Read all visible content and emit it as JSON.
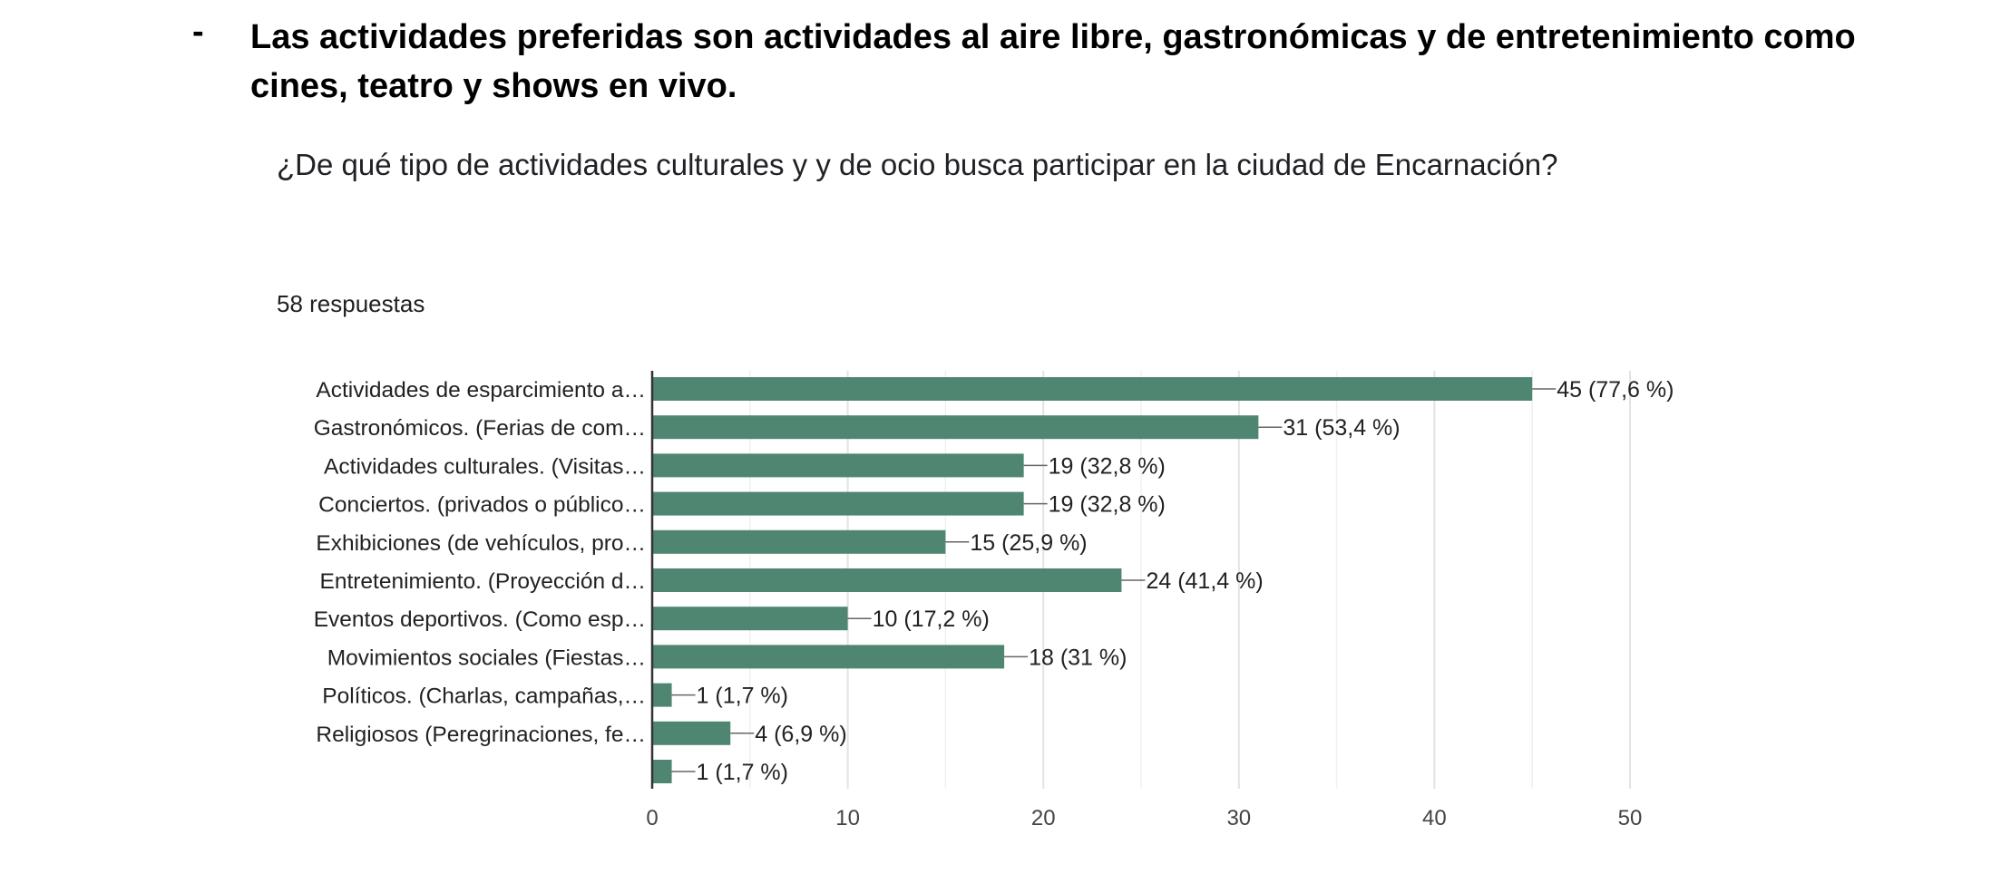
{
  "header": {
    "bullet": "-",
    "text": "Las actividades preferidas son actividades al aire libre, gastronómicas y de entretenimiento como cines, teatro y shows en vivo."
  },
  "question": "¿De qué tipo de actividades culturales y y de ocio busca participar en la ciudad de Encarnación?",
  "response_count": "58 respuestas",
  "colors": {
    "bar": "#4f8672",
    "grid": "#e3e3e3",
    "axis": "#333333",
    "connector": "#666666"
  },
  "chart_data": {
    "type": "bar",
    "orientation": "horizontal",
    "title": "¿De qué tipo de actividades culturales y y de ocio busca participar en la ciudad de Encarnación?",
    "categories": [
      "Actividades de esparcimiento a…",
      "Gastronómicos. (Ferias de com…",
      "Actividades culturales. (Visitas…",
      "Conciertos. (privados o público…",
      "Exhibiciones (de vehículos, pro…",
      "Entretenimiento. (Proyección d…",
      "Eventos deportivos. (Como esp…",
      "Movimientos sociales (Fiestas…",
      "Políticos. (Charlas, campañas,…",
      "Religiosos (Peregrinaciones, fe…",
      ""
    ],
    "values": [
      45,
      31,
      19,
      19,
      15,
      24,
      10,
      18,
      1,
      4,
      1
    ],
    "data_labels": [
      "45 (77,6 %)",
      "31 (53,4 %)",
      "19 (32,8 %)",
      "19 (32,8 %)",
      "15 (25,9 %)",
      "24 (41,4 %)",
      "10 (17,2 %)",
      "18 (31 %)",
      "1 (1,7 %)",
      "4 (6,9 %)",
      "1 (1,7 %)"
    ],
    "xlim": [
      0,
      50
    ],
    "xticks": [
      0,
      10,
      20,
      30,
      40,
      50
    ],
    "xtick_labels": [
      "0",
      "10",
      "20",
      "30",
      "40",
      "50"
    ],
    "minor_gridlines": [
      5,
      15,
      25,
      35,
      45
    ],
    "xlabel": "",
    "ylabel": ""
  }
}
